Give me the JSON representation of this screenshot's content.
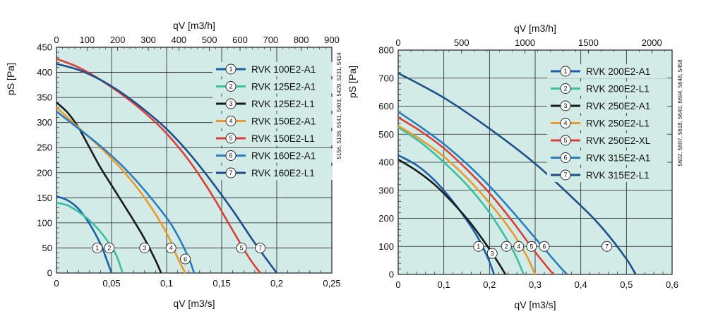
{
  "chart_data": [
    {
      "type": "line",
      "title": "",
      "xlabel": "qV [m3/s]",
      "x2label": "qV [m3/h]",
      "ylabel": "pS [Pa]",
      "xlim": [
        0,
        0.25
      ],
      "ylim": [
        0,
        450
      ],
      "x_ticks": [
        "0",
        "0,05",
        "0,1",
        "0,15",
        "0,2",
        "0,25"
      ],
      "x_tick_values": [
        0,
        0.05,
        0.1,
        0.15,
        0.2,
        0.25
      ],
      "y_ticks": [
        "0",
        "50",
        "100",
        "150",
        "200",
        "250",
        "300",
        "350",
        "400",
        "450"
      ],
      "y_tick_values": [
        0,
        50,
        100,
        150,
        200,
        250,
        300,
        350,
        400,
        450
      ],
      "x2_ticks": [
        "0",
        "100",
        "200",
        "300",
        "400",
        "500",
        "600",
        "700",
        "800",
        "900"
      ],
      "x2_tick_values": [
        0,
        100,
        200,
        300,
        400,
        500,
        600,
        700,
        800,
        900
      ],
      "side_note": "5156, 5136, 5541, 5403, 5429, 5231, 5414",
      "series": [
        {
          "num": "1",
          "name": "RVK 100E2-A1",
          "color": "#1a5fa8",
          "x": [
            0,
            0.01,
            0.02,
            0.03,
            0.04,
            0.045,
            0.05
          ],
          "y": [
            153,
            145,
            128,
            98,
            58,
            30,
            0
          ],
          "marker": [
            0.037,
            50
          ]
        },
        {
          "num": "2",
          "name": "RVK 125E2-A1",
          "color": "#3cbfa0",
          "x": [
            0,
            0.01,
            0.02,
            0.03,
            0.04,
            0.05,
            0.055,
            0.06
          ],
          "y": [
            140,
            135,
            122,
            105,
            82,
            52,
            32,
            0
          ],
          "marker": [
            0.048,
            50
          ]
        },
        {
          "num": "3",
          "name": "RVK 125E2-L1",
          "color": "#1a1a1a",
          "x": [
            0,
            0.01,
            0.02,
            0.03,
            0.04,
            0.05,
            0.06,
            0.07,
            0.08,
            0.09,
            0.095
          ],
          "y": [
            340,
            320,
            290,
            250,
            210,
            175,
            140,
            105,
            68,
            25,
            0
          ],
          "marker": [
            0.08,
            50
          ]
        },
        {
          "num": "4",
          "name": "RVK 150E2-A1",
          "color": "#e89a2e",
          "x": [
            0,
            0.02,
            0.04,
            0.06,
            0.08,
            0.1,
            0.11,
            0.117
          ],
          "y": [
            330,
            290,
            250,
            205,
            150,
            80,
            30,
            0
          ],
          "marker": [
            0.104,
            50
          ]
        },
        {
          "num": "5",
          "name": "RVK 150E2-L1",
          "color": "#d9403a",
          "x": [
            0,
            0.02,
            0.04,
            0.06,
            0.08,
            0.1,
            0.12,
            0.14,
            0.16,
            0.175,
            0.185
          ],
          "y": [
            427,
            410,
            385,
            355,
            320,
            278,
            225,
            160,
            85,
            30,
            0
          ],
          "marker": [
            0.168,
            50
          ]
        },
        {
          "num": "6",
          "name": "RVK 160E2-A1",
          "color": "#2a7cc0",
          "x": [
            0,
            0.02,
            0.04,
            0.06,
            0.08,
            0.1,
            0.11,
            0.12,
            0.125
          ],
          "y": [
            322,
            288,
            253,
            213,
            165,
            110,
            75,
            30,
            0
          ],
          "marker": [
            0.117,
            28
          ]
        },
        {
          "num": "7",
          "name": "RVK 160E2-L1",
          "color": "#1f4f8a",
          "x": [
            0,
            0.02,
            0.04,
            0.06,
            0.08,
            0.1,
            0.12,
            0.14,
            0.16,
            0.18,
            0.2
          ],
          "y": [
            417,
            405,
            385,
            358,
            325,
            287,
            240,
            185,
            125,
            60,
            0
          ],
          "marker": [
            0.185,
            50
          ]
        }
      ]
    },
    {
      "type": "line",
      "title": "",
      "xlabel": "qV [m3/s]",
      "x2label": "qV [m3/h]",
      "ylabel": "pS [Pa]",
      "xlim": [
        0,
        0.6
      ],
      "ylim": [
        0,
        800
      ],
      "x_ticks": [
        "0",
        "0,1",
        "0,2",
        "0,3",
        "0,4",
        "0,5",
        "0,6"
      ],
      "x_tick_values": [
        0,
        0.1,
        0.2,
        0.3,
        0.4,
        0.5,
        0.6
      ],
      "y_ticks": [
        "0",
        "100",
        "200",
        "300",
        "400",
        "500",
        "600",
        "700",
        "800"
      ],
      "y_tick_values": [
        0,
        100,
        200,
        300,
        400,
        500,
        600,
        700,
        800
      ],
      "x2_ticks": [
        "0",
        "500",
        "1000",
        "1500",
        "2000"
      ],
      "x2_tick_values": [
        0,
        500,
        1000,
        1500,
        2000
      ],
      "side_note": "5602, 5607, 5618, 5640, 6694, 5648, 5458",
      "series": [
        {
          "num": "1",
          "name": "RVK 200E2-A1",
          "color": "#1a5fa8",
          "x": [
            0,
            0.04,
            0.08,
            0.12,
            0.16,
            0.18,
            0.2,
            0.21
          ],
          "y": [
            425,
            390,
            335,
            260,
            170,
            115,
            45,
            0
          ],
          "marker": [
            0.176,
            100
          ]
        },
        {
          "num": "2",
          "name": "RVK 200E2-L1",
          "color": "#3cbfa0",
          "x": [
            0,
            0.05,
            0.1,
            0.15,
            0.2,
            0.25,
            0.275
          ],
          "y": [
            525,
            470,
            400,
            320,
            220,
            90,
            0
          ],
          "marker": [
            0.237,
            100
          ]
        },
        {
          "num": "3",
          "name": "RVK 250E2-A1",
          "color": "#1a1a1a",
          "x": [
            0,
            0.04,
            0.08,
            0.12,
            0.16,
            0.2,
            0.22,
            0.235
          ],
          "y": [
            410,
            370,
            320,
            255,
            180,
            90,
            40,
            0
          ],
          "marker": [
            0.206,
            75
          ]
        },
        {
          "num": "4",
          "name": "RVK 250E2-L1",
          "color": "#e89a2e",
          "x": [
            0,
            0.05,
            0.1,
            0.15,
            0.2,
            0.25,
            0.28,
            0.3
          ],
          "y": [
            530,
            480,
            420,
            345,
            255,
            150,
            70,
            0
          ],
          "marker": [
            0.264,
            100
          ]
        },
        {
          "num": "5",
          "name": "RVK 250E2-XL",
          "color": "#d9403a",
          "x": [
            0,
            0.05,
            0.1,
            0.15,
            0.2,
            0.25,
            0.3,
            0.34
          ],
          "y": [
            560,
            510,
            450,
            375,
            290,
            190,
            80,
            0
          ],
          "marker": [
            0.292,
            100
          ]
        },
        {
          "num": "6",
          "name": "RVK 315E2-A1",
          "color": "#2a7cc0",
          "x": [
            0,
            0.05,
            0.1,
            0.15,
            0.2,
            0.25,
            0.3,
            0.35,
            0.37
          ],
          "y": [
            580,
            525,
            465,
            395,
            315,
            225,
            130,
            35,
            0
          ],
          "marker": [
            0.32,
            100
          ]
        },
        {
          "num": "7",
          "name": "RVK 315E2-L1",
          "color": "#1f4f8a",
          "x": [
            0,
            0.1,
            0.2,
            0.3,
            0.4,
            0.45,
            0.5,
            0.52
          ],
          "y": [
            718,
            630,
            520,
            395,
            245,
            160,
            55,
            0
          ],
          "marker": [
            0.457,
            100
          ]
        }
      ]
    }
  ]
}
